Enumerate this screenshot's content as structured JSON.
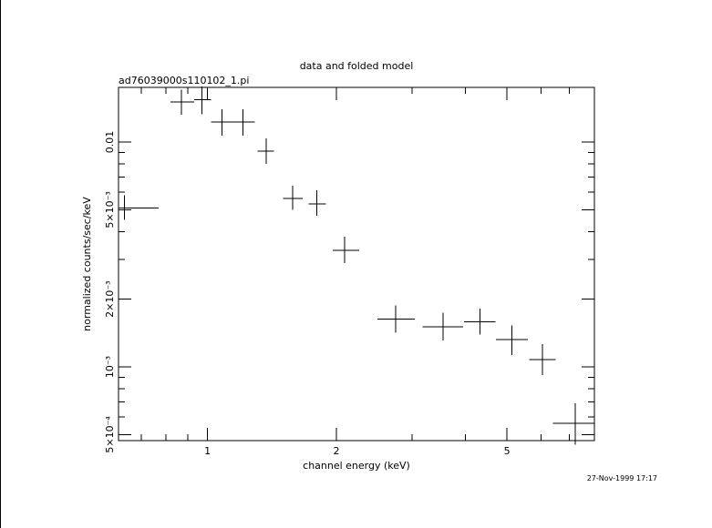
{
  "chart_data": {
    "type": "scatter",
    "title": "data and folded model",
    "subtitle": "ad76039000s110102_1.pi",
    "xlabel": "channel energy (keV)",
    "ylabel": "normalized counts/sec/keV",
    "timestamp": "27-Nov-1999 17:17",
    "x_scale": "log",
    "y_scale": "log",
    "xlim": [
      0.62,
      8.0
    ],
    "ylim": [
      0.00047,
      0.0175
    ],
    "grid": false,
    "x_ticks": [
      {
        "value": 1,
        "label": "1"
      },
      {
        "value": 2,
        "label": "2"
      },
      {
        "value": 5,
        "label": "5"
      }
    ],
    "y_ticks": [
      {
        "value": 0.0005,
        "label": "5×10⁻⁴"
      },
      {
        "value": 0.001,
        "label": "10⁻³"
      },
      {
        "value": 0.002,
        "label": "2×10⁻³"
      },
      {
        "value": 0.005,
        "label": "5×10⁻³"
      },
      {
        "value": 0.01,
        "label": "0.01"
      }
    ],
    "series": [
      {
        "points": [
          {
            "x": 0.64,
            "xlo": 0.62,
            "xhi": 0.77,
            "y": 0.0051,
            "ylo": 0.0045,
            "yhi": 0.0058
          },
          {
            "x": 0.87,
            "xlo": 0.82,
            "xhi": 0.93,
            "y": 0.0151,
            "ylo": 0.0132,
            "yhi": 0.0171
          },
          {
            "x": 0.97,
            "xlo": 0.93,
            "xhi": 1.02,
            "y": 0.0154,
            "ylo": 0.0133,
            "yhi": 0.0177
          },
          {
            "x": 1.08,
            "xlo": 1.02,
            "xhi": 1.14,
            "y": 0.0123,
            "ylo": 0.0107,
            "yhi": 0.014
          },
          {
            "x": 1.21,
            "xlo": 1.14,
            "xhi": 1.29,
            "y": 0.0123,
            "ylo": 0.0107,
            "yhi": 0.014
          },
          {
            "x": 1.37,
            "xlo": 1.31,
            "xhi": 1.43,
            "y": 0.0091,
            "ylo": 0.008,
            "yhi": 0.0104
          },
          {
            "x": 1.58,
            "xlo": 1.5,
            "xhi": 1.67,
            "y": 0.0056,
            "ylo": 0.005,
            "yhi": 0.0064
          },
          {
            "x": 1.8,
            "xlo": 1.72,
            "xhi": 1.89,
            "y": 0.0053,
            "ylo": 0.0047,
            "yhi": 0.0061
          },
          {
            "x": 2.09,
            "xlo": 1.96,
            "xhi": 2.26,
            "y": 0.0033,
            "ylo": 0.0029,
            "yhi": 0.0038
          },
          {
            "x": 2.75,
            "xlo": 2.49,
            "xhi": 3.05,
            "y": 0.00163,
            "ylo": 0.00142,
            "yhi": 0.00188
          },
          {
            "x": 3.55,
            "xlo": 3.18,
            "xhi": 3.95,
            "y": 0.00151,
            "ylo": 0.00131,
            "yhi": 0.00174
          },
          {
            "x": 4.33,
            "xlo": 3.97,
            "xhi": 4.7,
            "y": 0.00159,
            "ylo": 0.00139,
            "yhi": 0.00182
          },
          {
            "x": 5.13,
            "xlo": 4.71,
            "xhi": 5.6,
            "y": 0.00132,
            "ylo": 0.00113,
            "yhi": 0.00153
          },
          {
            "x": 6.05,
            "xlo": 5.63,
            "xhi": 6.5,
            "y": 0.00108,
            "ylo": 0.00092,
            "yhi": 0.00126
          },
          {
            "x": 7.22,
            "xlo": 6.4,
            "xhi": 8.0,
            "y": 0.00056,
            "ylo": 0.00045,
            "yhi": 0.00069
          }
        ]
      }
    ]
  }
}
